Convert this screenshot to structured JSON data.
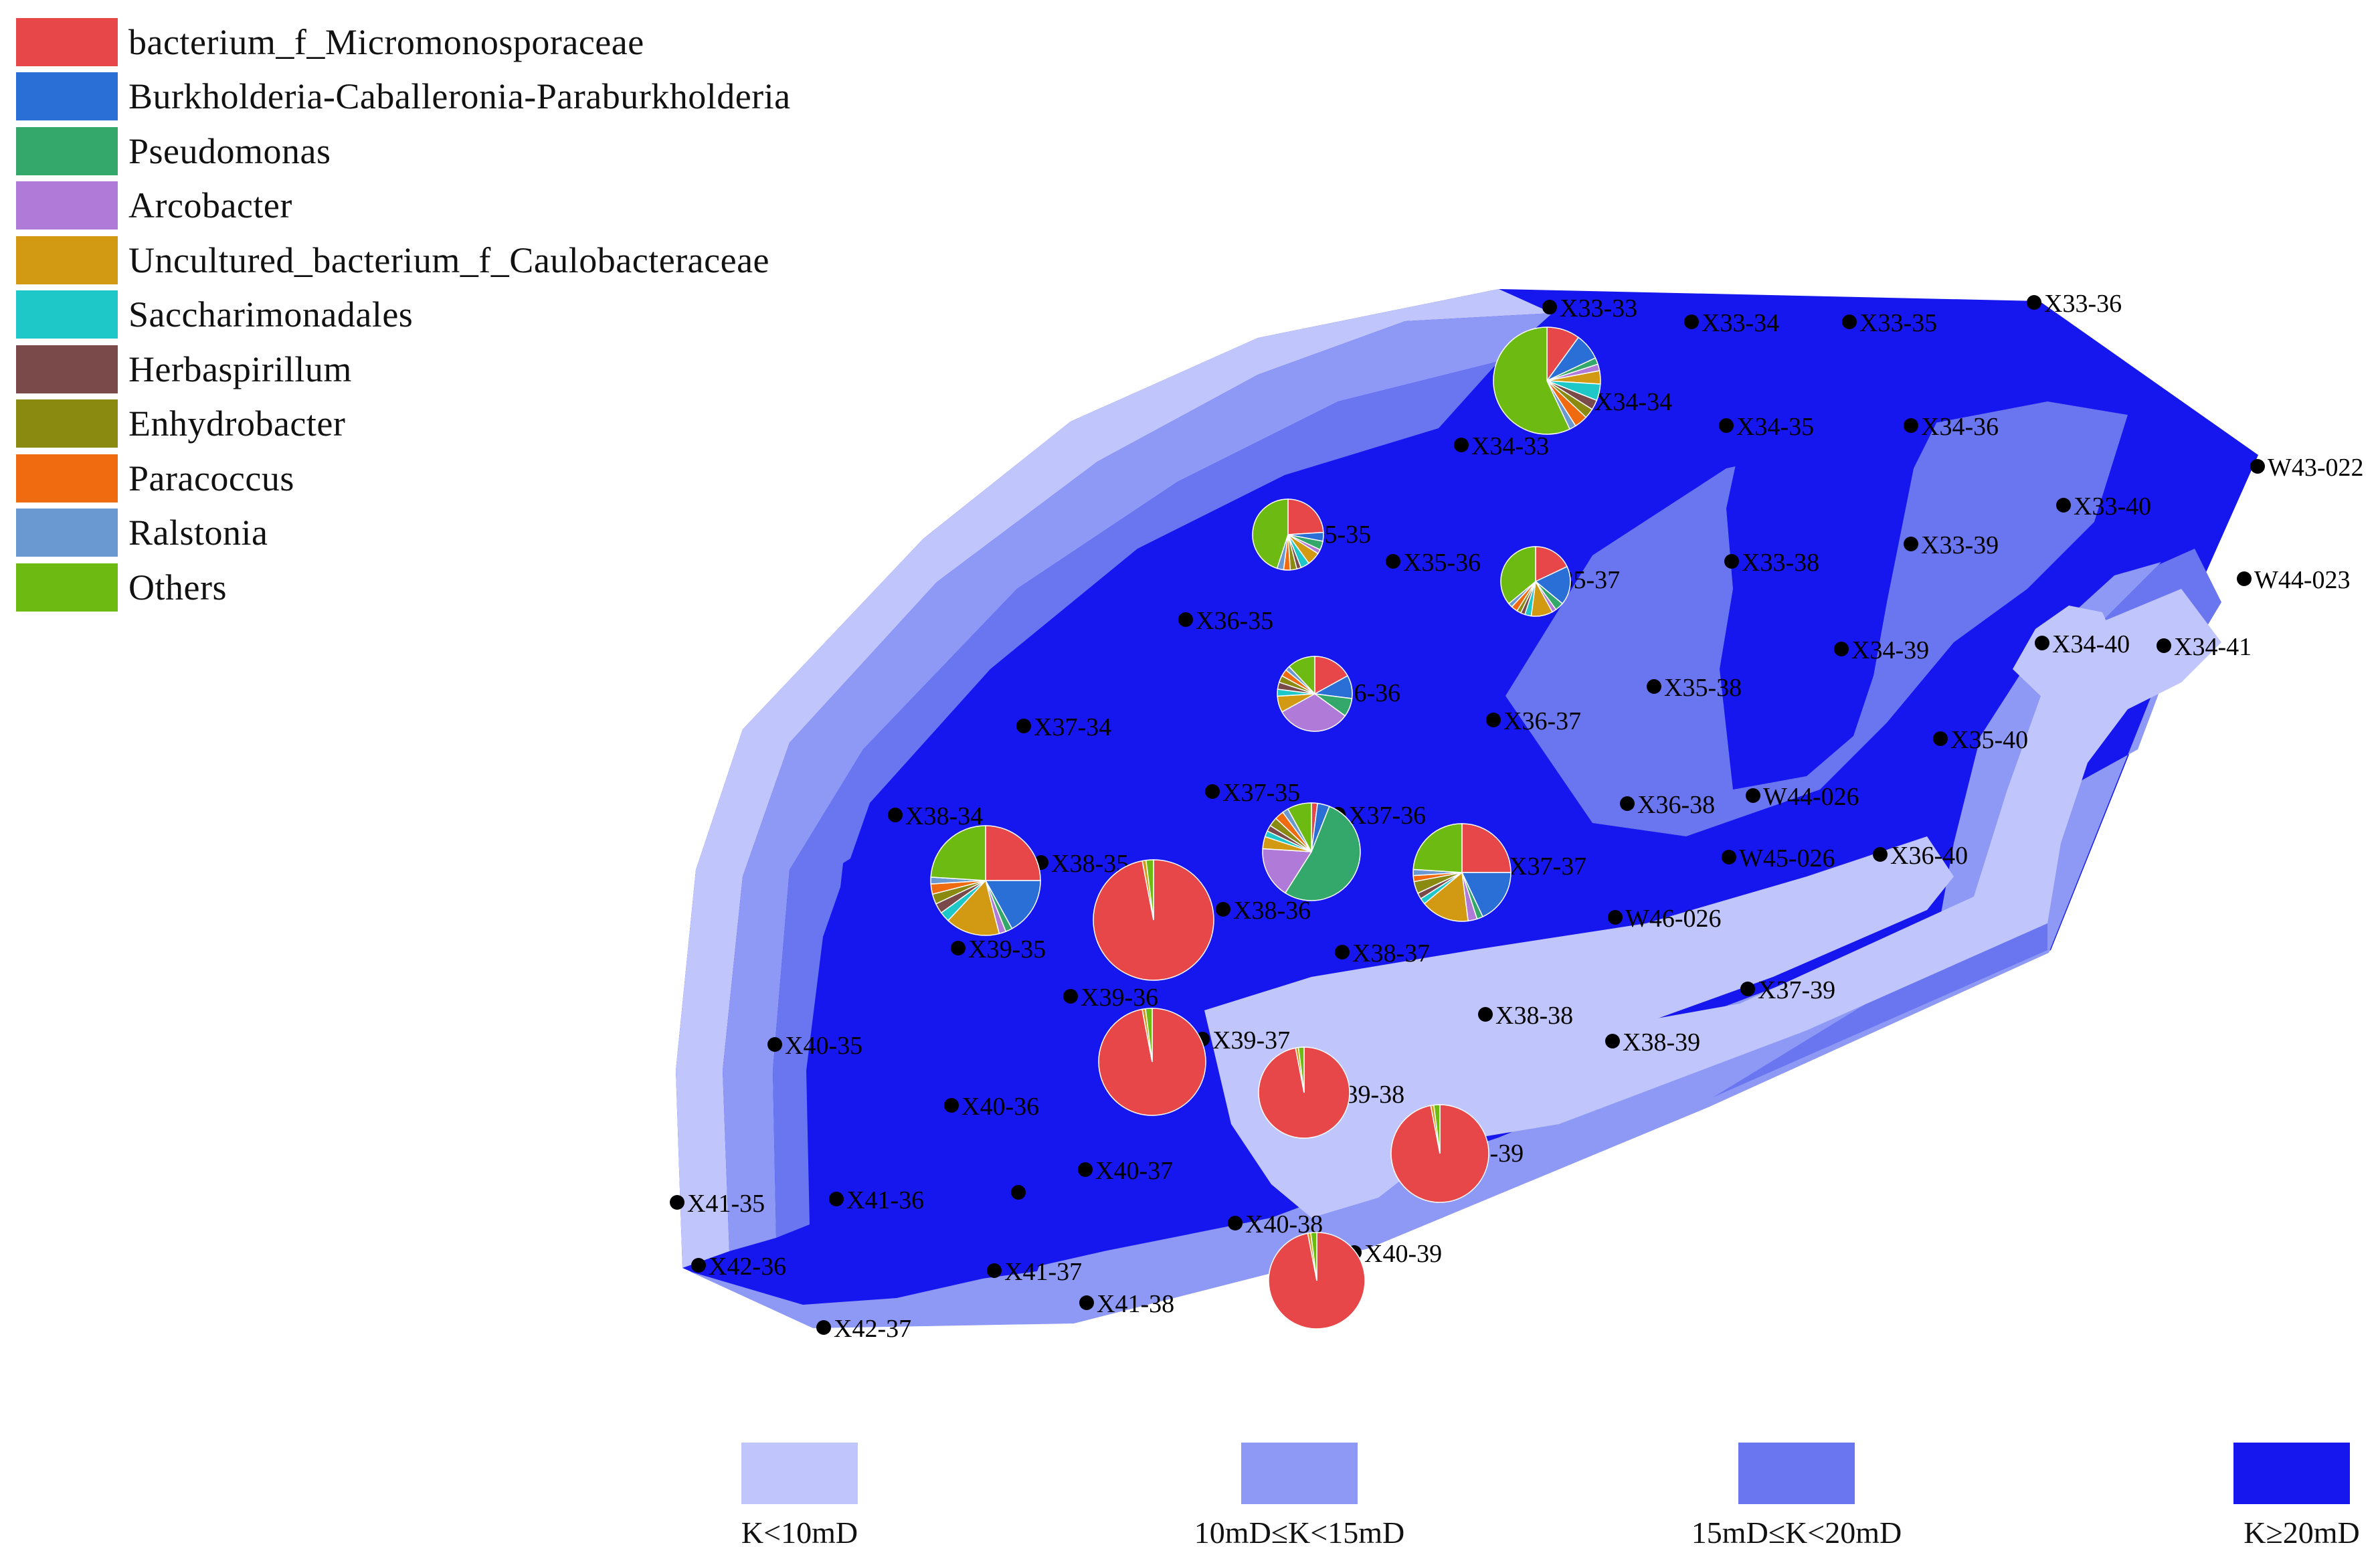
{
  "legend": [
    {
      "label": "bacterium_f_Micromonosporaceae",
      "color": "#e8474a"
    },
    {
      "label": "Burkholderia-Caballeronia-Paraburkholderia",
      "color": "#2a6fd6"
    },
    {
      "label": "Pseudomonas",
      "color": "#33a86a"
    },
    {
      "label": "Arcobacter",
      "color": "#b07ad8"
    },
    {
      "label": "Uncultured_bacterium_f_Caulobacteraceae",
      "color": "#d29a12"
    },
    {
      "label": "Saccharimonadales",
      "color": "#1ec8c8"
    },
    {
      "label": "Herbaspirillum",
      "color": "#7a4a4a"
    },
    {
      "label": "Enhydrobacter",
      "color": "#8a8a10"
    },
    {
      "label": "Paracoccus",
      "color": "#f06a10"
    },
    {
      "label": "Ralstonia",
      "color": "#6a98d0"
    },
    {
      "label": "Others",
      "color": "#6cba12"
    }
  ],
  "permeability_classes": [
    {
      "label": "K<10mD",
      "color": "#c0c6fb"
    },
    {
      "label": "10mD≤K<15mD",
      "color": "#8e99f5"
    },
    {
      "label": "15mD≤K<20mD",
      "color": "#6a76f0"
    },
    {
      "label": "K≥20mD",
      "color": "#1616ee"
    }
  ],
  "wells": [
    {
      "label": "X33-33"
    },
    {
      "label": "X33-34"
    },
    {
      "label": "X33-35"
    },
    {
      "label": "X33-36"
    },
    {
      "label": "X34-33"
    },
    {
      "label": "X34-34"
    },
    {
      "label": "X34-35"
    },
    {
      "label": "X34-36"
    },
    {
      "label": "W43-022"
    },
    {
      "label": "X33-40"
    },
    {
      "label": "X35-35"
    },
    {
      "label": "X35-36"
    },
    {
      "label": "X35-37"
    },
    {
      "label": "X33-38"
    },
    {
      "label": "X33-39"
    },
    {
      "label": "W44-023"
    },
    {
      "label": "X36-35"
    },
    {
      "label": "X34-39"
    },
    {
      "label": "X34-40"
    },
    {
      "label": "X34-41"
    },
    {
      "label": "X36-36"
    },
    {
      "label": "X35-38"
    },
    {
      "label": "X37-34"
    },
    {
      "label": "X36-37"
    },
    {
      "label": "X35-40"
    },
    {
      "label": "X37-35"
    },
    {
      "label": "X36-38"
    },
    {
      "label": "W44-026"
    },
    {
      "label": "X38-34"
    },
    {
      "label": "X37-36"
    },
    {
      "label": "X38-35"
    },
    {
      "label": "X37-37"
    },
    {
      "label": "W45-026"
    },
    {
      "label": "X36-40"
    },
    {
      "label": "X38-36"
    },
    {
      "label": "W46-026"
    },
    {
      "label": "X39-35"
    },
    {
      "label": "X38-37"
    },
    {
      "label": "X39-36"
    },
    {
      "label": "X37-39"
    },
    {
      "label": "X38-38"
    },
    {
      "label": "X39-37"
    },
    {
      "label": "X40-35"
    },
    {
      "label": "X38-39"
    },
    {
      "label": "X40-36"
    },
    {
      "label": "X39-38"
    },
    {
      "label": "X39-39"
    },
    {
      "label": "X40-37"
    },
    {
      "label": "X41-35"
    },
    {
      "label": "X41-36"
    },
    {
      "label": "X40-38"
    },
    {
      "label": "X40-39"
    },
    {
      "label": "X42-36"
    },
    {
      "label": "X41-37"
    },
    {
      "label": "X41-38"
    },
    {
      "label": "X42-37"
    },
    {
      "label": ""
    }
  ],
  "pie_charts": [
    {
      "well": "X34-34",
      "fractions": [
        0.1,
        0.08,
        0.02,
        0.02,
        0.04,
        0.05,
        0.03,
        0.03,
        0.04,
        0.02,
        0.57
      ]
    },
    {
      "well": "X35-35",
      "fractions": [
        0.24,
        0.04,
        0.04,
        0.02,
        0.06,
        0.04,
        0.02,
        0.03,
        0.03,
        0.03,
        0.45
      ]
    },
    {
      "well": "X35-37",
      "fractions": [
        0.18,
        0.18,
        0.04,
        0.02,
        0.1,
        0.03,
        0.02,
        0.02,
        0.03,
        0.02,
        0.36
      ]
    },
    {
      "well": "X36-36",
      "fractions": [
        0.17,
        0.1,
        0.08,
        0.32,
        0.07,
        0.03,
        0.03,
        0.03,
        0.03,
        0.02,
        0.12
      ]
    },
    {
      "well": "X37-36",
      "fractions": [
        0.02,
        0.04,
        0.53,
        0.17,
        0.04,
        0.02,
        0.02,
        0.03,
        0.03,
        0.02,
        0.08
      ]
    },
    {
      "well": "X37-37",
      "fractions": [
        0.25,
        0.18,
        0.02,
        0.03,
        0.16,
        0.02,
        0.02,
        0.04,
        0.02,
        0.02,
        0.24
      ]
    },
    {
      "well": "X38-35",
      "fractions": [
        0.25,
        0.17,
        0.02,
        0.02,
        0.16,
        0.03,
        0.03,
        0.03,
        0.03,
        0.02,
        0.24
      ]
    },
    {
      "well": "X38-36",
      "fractions": [
        0.97,
        0,
        0,
        0,
        0.01,
        0,
        0,
        0,
        0,
        0,
        0.02
      ]
    },
    {
      "well": "X39-37",
      "fractions": [
        0.97,
        0,
        0,
        0,
        0.01,
        0,
        0,
        0,
        0,
        0,
        0.02
      ]
    },
    {
      "well": "X39-38",
      "fractions": [
        0.97,
        0,
        0,
        0,
        0.01,
        0,
        0,
        0,
        0,
        0,
        0.02
      ]
    },
    {
      "well": "X39-39",
      "fractions": [
        0.97,
        0,
        0,
        0,
        0.01,
        0,
        0,
        0,
        0,
        0,
        0.02
      ]
    },
    {
      "well": "X40-39",
      "fractions": [
        0.97,
        0,
        0,
        0,
        0.01,
        0,
        0,
        0,
        0,
        0,
        0.02
      ]
    }
  ]
}
